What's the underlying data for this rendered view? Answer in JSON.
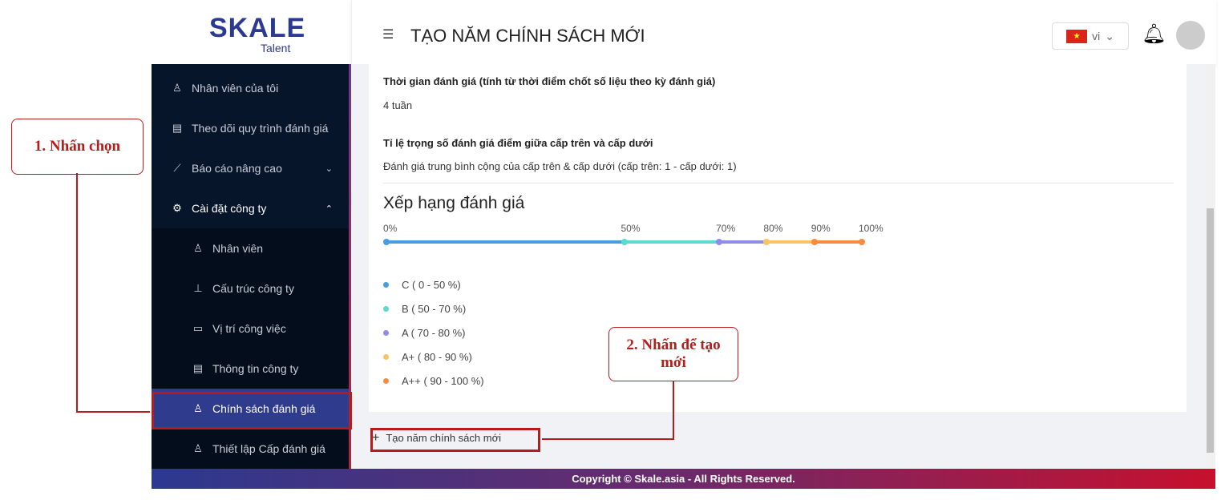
{
  "logo": {
    "brand": "SKALE",
    "sub": "Talent"
  },
  "header": {
    "title": "TẠO NĂM CHÍNH SÁCH MỚI",
    "lang": "vi"
  },
  "sidebar": {
    "items": [
      {
        "label": "Nhân viên của tôi",
        "icon": "user-icon"
      },
      {
        "label": "Theo dõi quy trình đánh giá",
        "icon": "document-icon"
      },
      {
        "label": "Báo cáo nâng cao",
        "icon": "chart-icon"
      },
      {
        "label": "Cài đặt công ty",
        "icon": "gear-icon"
      },
      {
        "label": "Nhân viên",
        "icon": "user-icon"
      },
      {
        "label": "Cấu trúc công ty",
        "icon": "hierarchy-icon"
      },
      {
        "label": "Vị trí công việc",
        "icon": "position-icon"
      },
      {
        "label": "Thông tin công ty",
        "icon": "document-icon"
      },
      {
        "label": "Chính sách đánh giá",
        "icon": "user-icon"
      },
      {
        "label": "Thiết lập Cấp đánh giá",
        "icon": "user-icon"
      }
    ]
  },
  "main": {
    "eval_time_label": "Thời gian đánh giá (tính từ thời điểm chốt số liệu theo kỳ đánh giá)",
    "eval_time_value": "4 tuần",
    "weight_label": "Tỉ lệ trọng số đánh giá điểm giữa cấp trên và cấp dưới",
    "weight_value": "Đánh giá trung bình cộng của cấp trên & cấp dưới (cấp trên: 1 - cấp dưới: 1)",
    "rank_title": "Xếp hạng đánh giá",
    "ticks": [
      "0%",
      "50%",
      "70%",
      "80%",
      "90%",
      "100%"
    ],
    "tick_values": [
      0,
      50,
      70,
      80,
      90,
      100
    ],
    "colors": [
      "#4a9be0",
      "#5ed9cf",
      "#8f8ce8",
      "#f7c466",
      "#f58c42"
    ],
    "legend": [
      "C ( 0 - 50 %)",
      "B ( 50 - 70 %)",
      "A ( 70 - 80 %)",
      "A+ ( 80 - 90 %)",
      "A++ ( 90 - 100 %)"
    ],
    "add_button": "Tạo năm chính sách mới"
  },
  "footer": "Copyright © Skale.asia - All Rights Reserved.",
  "annotations": {
    "step1": "1. Nhấn chọn",
    "step2": "2. Nhấn để tạo mới"
  }
}
